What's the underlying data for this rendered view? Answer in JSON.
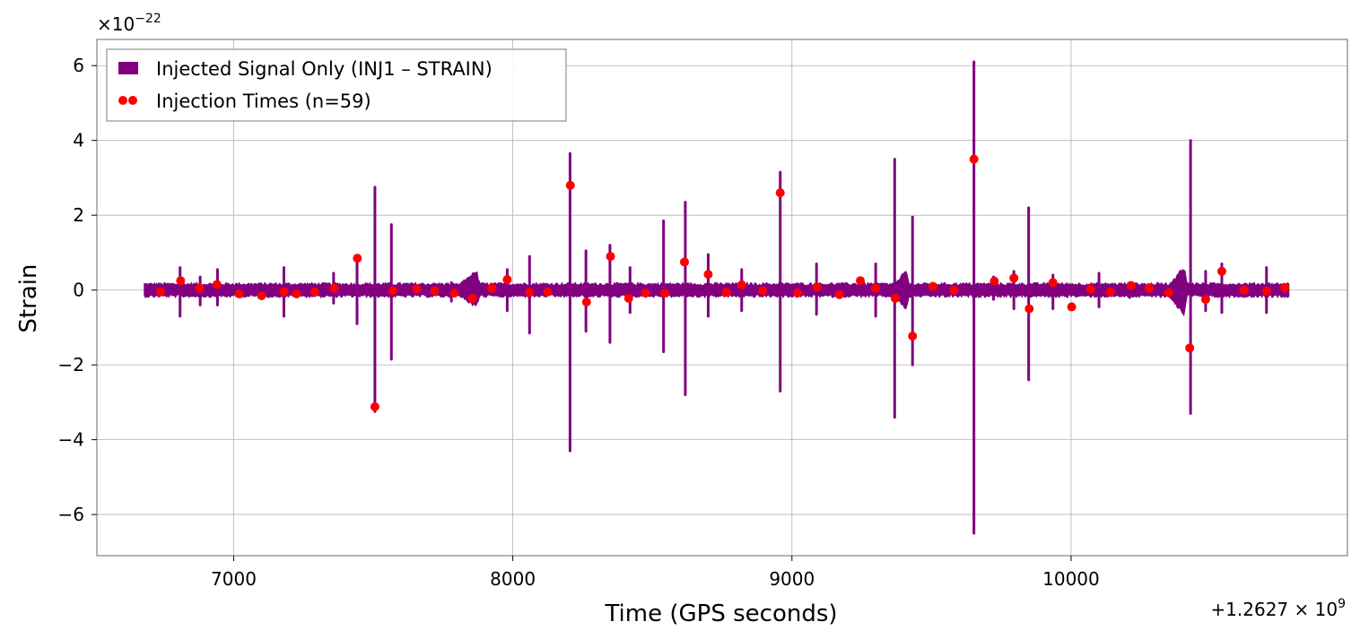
{
  "chart_data": {
    "type": "line",
    "title": "",
    "xlabel": "Time (GPS seconds)",
    "ylabel": "Strain",
    "x_offset_label": "+1.2627",
    "x_offset_exponent": "9",
    "y_multiplier_label": "×10",
    "y_multiplier_exponent": "−22",
    "xlim": [
      6510,
      10990
    ],
    "ylim": [
      -7.1,
      6.7
    ],
    "x_ticks": [
      7000,
      8000,
      9000,
      10000
    ],
    "x_tick_labels": [
      "7000",
      "8000",
      "9000",
      "10000"
    ],
    "y_ticks": [
      -6,
      -4,
      -2,
      0,
      2,
      4,
      6
    ],
    "y_tick_labels": [
      "−6",
      "−4",
      "−2",
      "0",
      "2",
      "4",
      "6"
    ],
    "grid": true,
    "legend_position": "top-left",
    "series": [
      {
        "name": "Injected Signal Only (INJ1 – STRAIN)",
        "kind": "strain",
        "color": "#800080",
        "x_range": [
          6680,
          10780
        ],
        "base_amplitude": 0.18,
        "bursts": [
          {
            "t": 6808,
            "max": 0.6,
            "min": -0.7
          },
          {
            "t": 6880,
            "max": 0.35,
            "min": -0.4
          },
          {
            "t": 6942,
            "max": 0.55,
            "min": -0.4
          },
          {
            "t": 7180,
            "max": 0.6,
            "min": -0.7
          },
          {
            "t": 7358,
            "max": 0.45,
            "min": -0.35
          },
          {
            "t": 7442,
            "max": 0.9,
            "min": -0.9
          },
          {
            "t": 7506,
            "max": 2.75,
            "min": -3.25
          },
          {
            "t": 7565,
            "max": 1.75,
            "min": -1.85
          },
          {
            "t": 7780,
            "max": 0.2,
            "min": -0.3
          },
          {
            "t": 7980,
            "max": 0.55,
            "min": -0.55
          },
          {
            "t": 8060,
            "max": 0.9,
            "min": -1.15
          },
          {
            "t": 8205,
            "max": 3.65,
            "min": -4.3
          },
          {
            "t": 8262,
            "max": 1.05,
            "min": -1.1
          },
          {
            "t": 8348,
            "max": 1.2,
            "min": -1.4
          },
          {
            "t": 8420,
            "max": 0.6,
            "min": -0.6
          },
          {
            "t": 8540,
            "max": 1.85,
            "min": -1.65
          },
          {
            "t": 8618,
            "max": 2.35,
            "min": -2.8
          },
          {
            "t": 8700,
            "max": 0.95,
            "min": -0.7
          },
          {
            "t": 8820,
            "max": 0.55,
            "min": -0.55
          },
          {
            "t": 8958,
            "max": 3.15,
            "min": -2.7
          },
          {
            "t": 9088,
            "max": 0.7,
            "min": -0.65
          },
          {
            "t": 9300,
            "max": 0.7,
            "min": -0.7
          },
          {
            "t": 9368,
            "max": 3.5,
            "min": -3.4
          },
          {
            "t": 9432,
            "max": 1.95,
            "min": -2.0
          },
          {
            "t": 9652,
            "max": 6.1,
            "min": -6.5
          },
          {
            "t": 9722,
            "max": 0.35,
            "min": -0.25
          },
          {
            "t": 9795,
            "max": 0.5,
            "min": -0.5
          },
          {
            "t": 9848,
            "max": 2.2,
            "min": -2.4
          },
          {
            "t": 9935,
            "max": 0.4,
            "min": -0.5
          },
          {
            "t": 10100,
            "max": 0.45,
            "min": -0.45
          },
          {
            "t": 10210,
            "max": 0.2,
            "min": -0.2
          },
          {
            "t": 10428,
            "max": 4.0,
            "min": -3.3
          },
          {
            "t": 10482,
            "max": 0.5,
            "min": -0.55
          },
          {
            "t": 10540,
            "max": 0.7,
            "min": -0.6
          },
          {
            "t": 10700,
            "max": 0.6,
            "min": -0.6
          }
        ],
        "swells": [
          {
            "t": 7870,
            "width": 90,
            "max": 0.55,
            "min": -0.5
          },
          {
            "t": 9410,
            "width": 70,
            "max": 0.55,
            "min": -0.55
          },
          {
            "t": 10405,
            "width": 70,
            "max": 0.7,
            "min": -0.75
          }
        ]
      },
      {
        "name": "Injection Times (n=59)",
        "kind": "scatter",
        "color": "#ff0000",
        "x": [
          6738,
          6810,
          6878,
          6940,
          7020,
          7100,
          7180,
          7225,
          7290,
          7360,
          7443,
          7506,
          7570,
          7656,
          7720,
          7790,
          7855,
          7925,
          7980,
          8060,
          8125,
          8206,
          8264,
          8350,
          8415,
          8475,
          8545,
          8615,
          8700,
          8765,
          8820,
          8895,
          8958,
          9020,
          9090,
          9170,
          9245,
          9300,
          9370,
          9432,
          9505,
          9580,
          9652,
          9725,
          9795,
          9850,
          9935,
          10002,
          10070,
          10140,
          10215,
          10280,
          10350,
          10425,
          10482,
          10540,
          10620,
          10700,
          10765
        ],
        "y": [
          -0.05,
          0.25,
          0.05,
          0.15,
          -0.1,
          -0.15,
          -0.05,
          -0.1,
          -0.05,
          0.05,
          0.85,
          -3.12,
          -0.02,
          0.03,
          -0.02,
          -0.08,
          -0.22,
          0.05,
          0.28,
          -0.06,
          -0.05,
          2.8,
          -0.32,
          0.9,
          -0.22,
          -0.08,
          -0.08,
          0.75,
          0.42,
          -0.06,
          0.14,
          -0.02,
          2.6,
          -0.08,
          0.08,
          -0.12,
          0.25,
          0.05,
          -0.22,
          -1.23,
          0.1,
          0.0,
          3.5,
          0.24,
          0.32,
          -0.5,
          0.2,
          -0.45,
          0.03,
          -0.05,
          0.12,
          0.05,
          -0.07,
          -1.55,
          -0.25,
          0.5,
          0.0,
          -0.03,
          0.07
        ]
      }
    ]
  }
}
